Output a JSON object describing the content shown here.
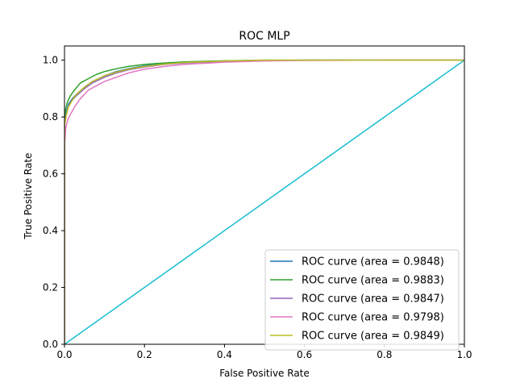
{
  "chart_data": {
    "type": "line",
    "title": "ROC MLP",
    "xlabel": "False Positive Rate",
    "ylabel": "True Positive Rate",
    "xlim": [
      0,
      1
    ],
    "ylim": [
      0,
      1.05
    ],
    "xticks": [
      0,
      0.2,
      0.4,
      0.6,
      0.8,
      1
    ],
    "xtick_labels": [
      "0.0",
      "0.2",
      "0.4",
      "0.6",
      "0.8",
      "1.0"
    ],
    "yticks": [
      0,
      0.2,
      0.4,
      0.6,
      0.8,
      1
    ],
    "ytick_labels": [
      "0.0",
      "0.2",
      "0.4",
      "0.6",
      "0.8",
      "1.0"
    ],
    "grid": false,
    "legend_position": "lower-right",
    "series": [
      {
        "name": "ROC curve (area = 0.9848)",
        "color": "#1f77b4",
        "x": [
          0,
          0,
          0.005,
          0.01,
          0.02,
          0.03,
          0.05,
          0.07,
          0.1,
          0.13,
          0.16,
          0.2,
          0.25,
          0.3,
          0.4,
          0.5,
          0.6,
          0.8,
          1
        ],
        "y": [
          0,
          0.79,
          0.82,
          0.845,
          0.865,
          0.88,
          0.905,
          0.925,
          0.945,
          0.96,
          0.97,
          0.98,
          0.988,
          0.993,
          0.997,
          0.999,
          1,
          1,
          1
        ]
      },
      {
        "name": "ROC curve (area = 0.9883)",
        "color": "#2ca02c",
        "x": [
          0,
          0,
          0.003,
          0.008,
          0.015,
          0.025,
          0.04,
          0.06,
          0.08,
          0.1,
          0.13,
          0.16,
          0.2,
          0.25,
          0.3,
          0.4,
          0.5,
          0.6,
          0.8,
          1
        ],
        "y": [
          0,
          0.8,
          0.83,
          0.855,
          0.875,
          0.895,
          0.92,
          0.935,
          0.95,
          0.96,
          0.97,
          0.978,
          0.985,
          0.99,
          0.994,
          0.998,
          1,
          1,
          1,
          1
        ]
      },
      {
        "name": "ROC curve (area = 0.9847)",
        "color": "#9467bd",
        "x": [
          0,
          0,
          0.005,
          0.01,
          0.02,
          0.03,
          0.05,
          0.07,
          0.1,
          0.13,
          0.16,
          0.2,
          0.25,
          0.3,
          0.4,
          0.5,
          0.6,
          0.8,
          1
        ],
        "y": [
          0,
          0.78,
          0.81,
          0.84,
          0.86,
          0.875,
          0.9,
          0.92,
          0.94,
          0.955,
          0.966,
          0.976,
          0.985,
          0.99,
          0.996,
          0.999,
          1,
          1,
          1
        ]
      },
      {
        "name": "ROC curve (area = 0.9798)",
        "color": "#e377c2",
        "x": [
          0,
          0,
          0.003,
          0.008,
          0.015,
          0.025,
          0.04,
          0.06,
          0.08,
          0.1,
          0.13,
          0.16,
          0.2,
          0.25,
          0.3,
          0.4,
          0.5,
          0.6,
          0.8,
          1
        ],
        "y": [
          0,
          0.7,
          0.76,
          0.79,
          0.81,
          0.835,
          0.865,
          0.895,
          0.91,
          0.925,
          0.94,
          0.955,
          0.968,
          0.978,
          0.985,
          0.993,
          0.997,
          0.999,
          1,
          1
        ]
      },
      {
        "name": "ROC curve (area = 0.9849)",
        "color": "#bcbd22",
        "x": [
          0,
          0,
          0.005,
          0.01,
          0.02,
          0.03,
          0.05,
          0.07,
          0.1,
          0.13,
          0.16,
          0.2,
          0.25,
          0.3,
          0.4,
          0.5,
          0.6,
          0.8,
          1
        ],
        "y": [
          0,
          0.77,
          0.81,
          0.835,
          0.86,
          0.88,
          0.905,
          0.925,
          0.945,
          0.958,
          0.968,
          0.978,
          0.986,
          0.992,
          0.997,
          1,
          1,
          1,
          1
        ]
      }
    ],
    "reference_line": {
      "color": "#17becf",
      "x": [
        0,
        1
      ],
      "y": [
        0,
        1
      ]
    }
  }
}
